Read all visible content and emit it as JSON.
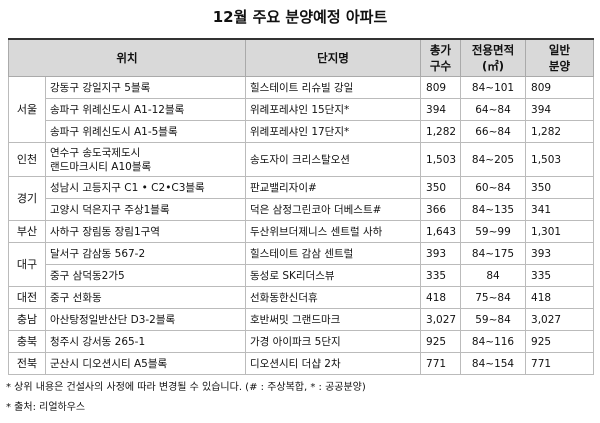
{
  "title": "12월 주요 분양예정 아파트",
  "table": {
    "header": [
      [
        "위치"
      ],
      [
        "단지명"
      ],
      [
        "총가",
        "구수"
      ],
      [
        "전용면적",
        "(㎡)"
      ],
      [
        "일반",
        "분양"
      ]
    ],
    "groups": [
      {
        "region": "서울",
        "rows": [
          [
            "강동구 강일지구 5블록",
            "힐스테이트 리슈빌 강일",
            "809",
            "84~101",
            "809"
          ],
          [
            "송파구 위례신도시 A1-12블록",
            "위례포레샤인 15단지*",
            "394",
            "64~84",
            "394"
          ],
          [
            "송파구 위례신도시 A1-5블록",
            "위례포레샤인 17단지*",
            "1,282",
            "66~84",
            "1,282"
          ]
        ]
      },
      {
        "region": "인천",
        "rows": [
          [
            [
              "연수구 송도국제도시",
              "랜드마크시티 A10블록"
            ],
            "송도자이 크리스탈오션",
            "1,503",
            "84~205",
            "1,503"
          ]
        ]
      },
      {
        "region": "경기",
        "rows": [
          [
            "성남시 고등지구 C1 • C2•C3블록",
            "판교밸리자이#",
            "350",
            "60~84",
            "350"
          ],
          [
            "고양시 덕은지구 주상1블록",
            "덕은 삼정그린코아 더베스트#",
            "366",
            "84~135",
            "341"
          ]
        ]
      },
      {
        "region": "부산",
        "rows": [
          [
            "사하구 장림동 장림1구역",
            "두산위브더제니스 센트럴 사하",
            "1,643",
            "59~99",
            "1,301"
          ]
        ]
      },
      {
        "region": "대구",
        "rows": [
          [
            "달서구 감삼동 567-2",
            "힐스테이트 감삼 센트럴",
            "393",
            "84~175",
            "393"
          ],
          [
            "중구 삼덕동2가5",
            "동성로 SK리더스뷰",
            "335",
            "84",
            "335"
          ]
        ]
      },
      {
        "region": "대전",
        "rows": [
          [
            "중구 선화동",
            "선화동한신더휴",
            "418",
            "75~84",
            "418"
          ]
        ]
      },
      {
        "region": "충남",
        "rows": [
          [
            "아산탕정일반산단 D3-2블록",
            "호반써밋 그랜드마크",
            "3,027",
            "59~84",
            "3,027"
          ]
        ]
      },
      {
        "region": "충북",
        "rows": [
          [
            "청주시 강서동 265-1",
            "가경 아이파크 5단지",
            "925",
            "84~116",
            "925"
          ]
        ]
      },
      {
        "region": "전북",
        "rows": [
          [
            "군산시 디오션시티 A5블록",
            "디오션시티 더샵 2차",
            "771",
            "84~154",
            "771"
          ]
        ]
      }
    ]
  },
  "notes": [
    "* 상위 내용은 건설사의 사정에 따라 변경될 수 있습니다. (# : 주상복합, * : 공공분양)",
    "* 출처: 리얼하우스"
  ]
}
